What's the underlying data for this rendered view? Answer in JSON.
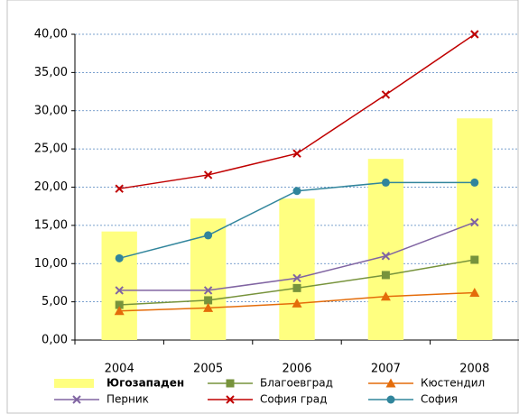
{
  "chart_data": {
    "type": "bar-line",
    "categories": [
      "2004",
      "2005",
      "2006",
      "2007",
      "2008"
    ],
    "series": [
      {
        "name": "Югозападен",
        "type": "bar",
        "color": "#ffff80",
        "values": [
          14.2,
          15.9,
          18.5,
          23.7,
          29.0
        ]
      },
      {
        "name": "Благоевград",
        "type": "line",
        "marker": "square",
        "color": "#77933c",
        "values": [
          4.6,
          5.2,
          6.8,
          8.5,
          10.5
        ]
      },
      {
        "name": "Кюстендил",
        "type": "line",
        "marker": "triangle",
        "color": "#e46c0a",
        "values": [
          3.8,
          4.2,
          4.8,
          5.7,
          6.2
        ]
      },
      {
        "name": "Перник",
        "type": "line",
        "marker": "x",
        "color": "#8064a2",
        "values": [
          6.5,
          6.5,
          8.1,
          11.0,
          15.4
        ]
      },
      {
        "name": "София град",
        "type": "line",
        "marker": "x",
        "color": "#c00000",
        "values": [
          19.8,
          21.6,
          24.4,
          32.1,
          40.0
        ]
      },
      {
        "name": "София",
        "type": "line",
        "marker": "circle",
        "color": "#31859c",
        "values": [
          10.7,
          13.7,
          19.5,
          20.6,
          20.6
        ]
      }
    ],
    "ylim": [
      0,
      40
    ],
    "yticks": [
      {
        "value": 0,
        "label": "0,00"
      },
      {
        "value": 5,
        "label": "5,00"
      },
      {
        "value": 10,
        "label": "10,00"
      },
      {
        "value": 15,
        "label": "15,00"
      },
      {
        "value": 20,
        "label": "20,00"
      },
      {
        "value": 25,
        "label": "25,00"
      },
      {
        "value": 30,
        "label": "30,00"
      },
      {
        "value": 35,
        "label": "35,00"
      },
      {
        "value": 40,
        "label": "40,00"
      }
    ],
    "grid": true,
    "legend": "bottom"
  }
}
